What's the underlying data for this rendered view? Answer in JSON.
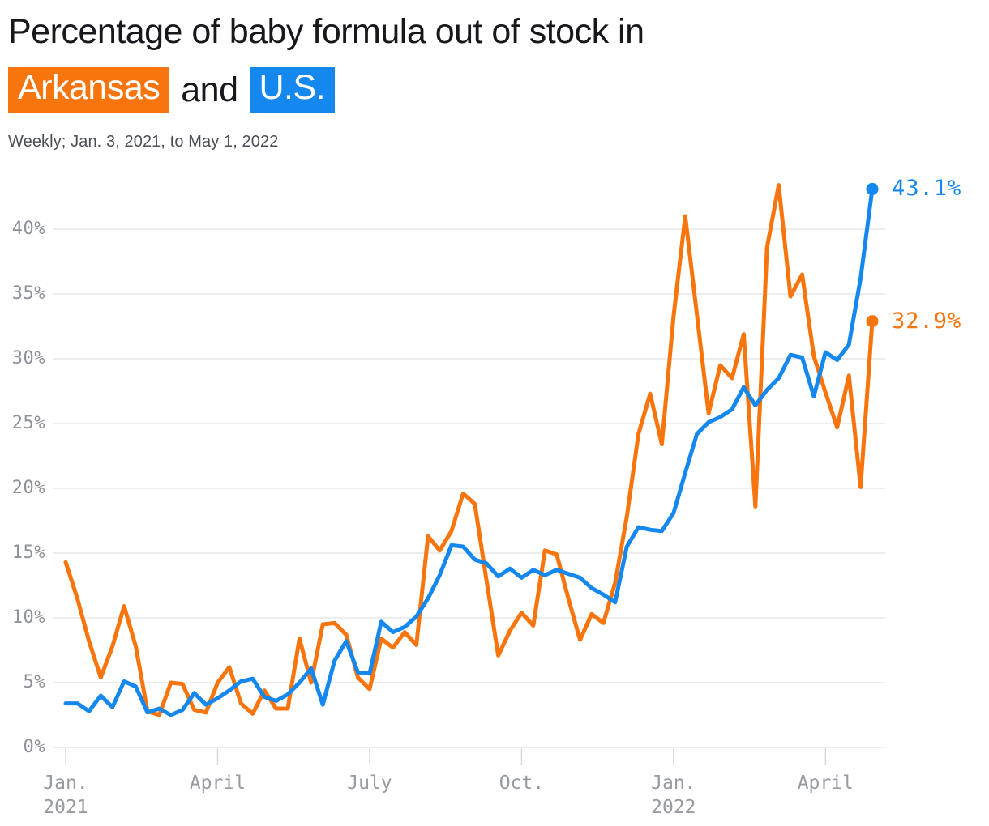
{
  "header": {
    "title_prefix": "Percentage of baby formula out of stock in",
    "highlight_state": "Arkansas",
    "connector": "and",
    "highlight_us": "U.S.",
    "subtitle": "Weekly; Jan. 3, 2021, to May 1, 2022"
  },
  "colors": {
    "arkansas": "#f8750e",
    "us": "#1588f0",
    "grid": "#e6e7e9",
    "tick": "#d9dbde",
    "axis_text": "#8d9198",
    "title_text": "#17181c",
    "subtitle_text": "#4b4f55",
    "background": "#ffffff"
  },
  "chart_data": {
    "type": "line",
    "title": "Percentage of baby formula out of stock in Arkansas and U.S.",
    "subtitle": "Weekly; Jan. 3, 2021, to May 1, 2022",
    "x_unit": "week",
    "x_start": "Jan. 3, 2021",
    "x_end": "May 1, 2022",
    "n_points": 70,
    "ylim": [
      0,
      45
    ],
    "grid": true,
    "legend_position": "title-inline",
    "y_ticks": [
      {
        "value": 0,
        "label": "0%"
      },
      {
        "value": 5,
        "label": "5%"
      },
      {
        "value": 10,
        "label": "10%"
      },
      {
        "value": 15,
        "label": "15%"
      },
      {
        "value": 20,
        "label": "20%"
      },
      {
        "value": 25,
        "label": "25%"
      },
      {
        "value": 30,
        "label": "30%"
      },
      {
        "value": 35,
        "label": "35%"
      },
      {
        "value": 40,
        "label": "40%"
      }
    ],
    "x_ticks": [
      {
        "week": 0,
        "label": "Jan.",
        "year": "2021"
      },
      {
        "week": 13,
        "label": "April",
        "year": ""
      },
      {
        "week": 26,
        "label": "July",
        "year": ""
      },
      {
        "week": 39,
        "label": "Oct.",
        "year": ""
      },
      {
        "week": 52,
        "label": "Jan.",
        "year": "2022"
      },
      {
        "week": 65,
        "label": "April",
        "year": ""
      }
    ],
    "series": [
      {
        "name": "Arkansas",
        "color": "#f8750e",
        "end_label": "32.9%",
        "values": [
          14.3,
          11.5,
          8.2,
          5.4,
          7.8,
          10.9,
          7.8,
          2.8,
          2.5,
          5.0,
          4.9,
          2.9,
          2.7,
          5.0,
          6.2,
          3.4,
          2.6,
          4.4,
          3.0,
          3.0,
          8.4,
          5.0,
          9.5,
          9.6,
          8.7,
          5.4,
          4.5,
          8.4,
          7.7,
          8.9,
          7.9,
          16.3,
          15.2,
          16.7,
          19.6,
          18.8,
          12.9,
          7.1,
          9.0,
          10.4,
          9.4,
          15.2,
          14.9,
          11.5,
          8.3,
          10.3,
          9.6,
          12.7,
          17.8,
          24.2,
          27.3,
          23.4,
          33.3,
          41.0,
          33.4,
          25.8,
          29.5,
          28.5,
          31.9,
          18.6,
          38.6,
          43.4,
          34.8,
          36.5,
          30.2,
          27.4,
          24.7,
          28.7,
          20.1,
          32.9
        ]
      },
      {
        "name": "U.S.",
        "color": "#1588f0",
        "end_label": "43.1%",
        "values": [
          3.4,
          3.4,
          2.8,
          4.0,
          3.1,
          5.1,
          4.7,
          2.7,
          3.0,
          2.5,
          2.9,
          4.2,
          3.3,
          3.8,
          4.4,
          5.1,
          5.3,
          3.9,
          3.6,
          4.1,
          5.0,
          6.1,
          3.3,
          6.7,
          8.2,
          5.8,
          5.7,
          9.7,
          8.9,
          9.3,
          10.1,
          11.5,
          13.3,
          15.6,
          15.5,
          14.5,
          14.2,
          13.2,
          13.8,
          13.1,
          13.7,
          13.3,
          13.7,
          13.4,
          13.1,
          12.3,
          11.8,
          11.2,
          15.5,
          17.0,
          16.8,
          16.7,
          18.1,
          21.2,
          24.2,
          25.1,
          25.5,
          26.1,
          27.8,
          26.4,
          27.6,
          28.5,
          30.3,
          30.1,
          27.1,
          30.5,
          29.9,
          31.1,
          36.2,
          43.1
        ]
      }
    ]
  }
}
